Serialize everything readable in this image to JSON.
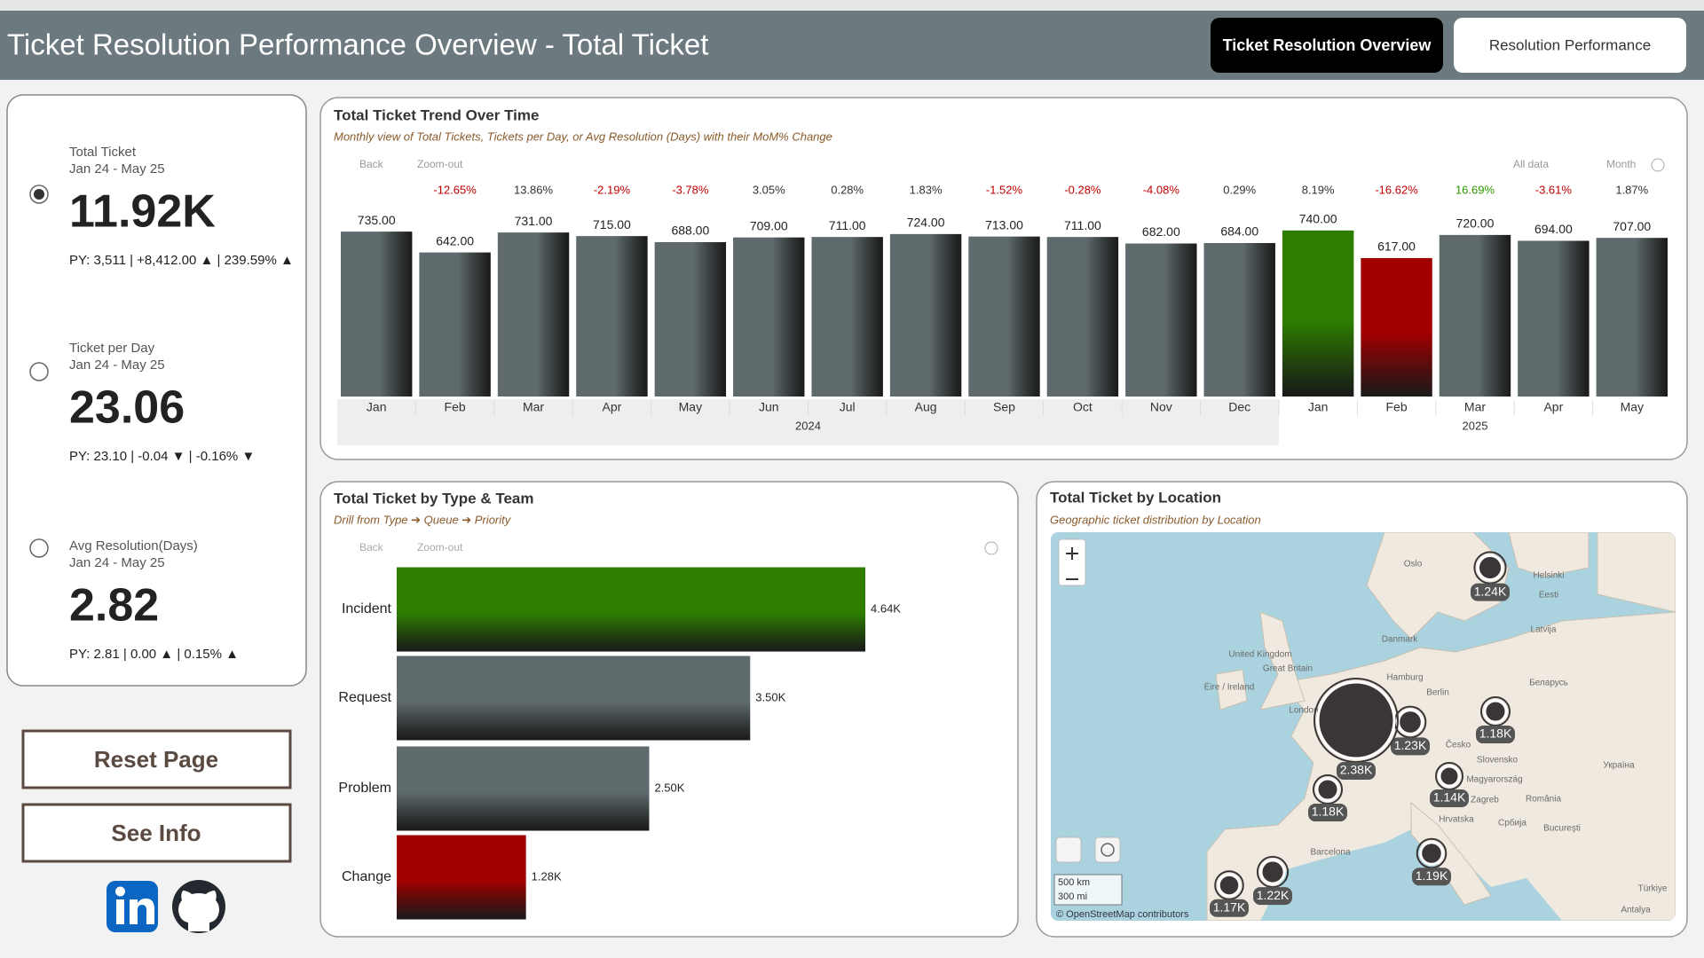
{
  "header": {
    "title": "Ticket Resolution Performance Overview - Total Ticket",
    "tabs": [
      "Ticket Resolution Overview",
      "Resolution Performance"
    ]
  },
  "kpis": [
    {
      "label": "Total Ticket",
      "period": "Jan 24 - May 25",
      "value": "11.92K",
      "comparison": "PY: 3,511 | +8,412.00 ▲ | 239.59% ▲"
    },
    {
      "label": "Ticket per Day",
      "period": "Jan 24 - May 25",
      "value": "23.06",
      "comparison": "PY: 23.10 | -0.04  ▼  | -0.16%  ▼"
    },
    {
      "label": "Avg Resolution(Days)",
      "period": "Jan 24 - May 25",
      "value": "2.82",
      "comparison": "PY: 2.81 | 0.00 ▲ | 0.15% ▲"
    }
  ],
  "buttons": [
    "Reset Page",
    "See Info"
  ],
  "chart_data": [
    {
      "type": "bar",
      "title": "Total Ticket Trend Over Time",
      "subtitle": "Monthly view of Total Tickets, Tickets per Day, or Avg Resolution (Days) with their MoM% Change",
      "toolbar": [
        "Back",
        "Zoom-out",
        "All data",
        "Month"
      ],
      "categories": [
        "Jan",
        "Feb",
        "Mar",
        "Apr",
        "May",
        "Jun",
        "Jul",
        "Aug",
        "Sep",
        "Oct",
        "Nov",
        "Dec",
        "Jan",
        "Feb",
        "Mar",
        "Apr",
        "May"
      ],
      "category_years": [
        "2024",
        "2024",
        "2024",
        "2024",
        "2024",
        "2024",
        "2024",
        "2024",
        "2024",
        "2024",
        "2024",
        "2024",
        "2025",
        "2025",
        "2025",
        "2025",
        "2025"
      ],
      "values": [
        735,
        642,
        731,
        715,
        688,
        709,
        711,
        724,
        713,
        711,
        682,
        684,
        740,
        617,
        720,
        694,
        707
      ],
      "value_labels": [
        "735.00",
        "642.00",
        "731.00",
        "715.00",
        "688.00",
        "709.00",
        "711.00",
        "724.00",
        "713.00",
        "711.00",
        "682.00",
        "684.00",
        "740.00",
        "617.00",
        "720.00",
        "694.00",
        "707.00"
      ],
      "colors": [
        "#5e6a6c",
        "#5e6a6c",
        "#5e6a6c",
        "#5e6a6c",
        "#5e6a6c",
        "#5e6a6c",
        "#5e6a6c",
        "#5e6a6c",
        "#5e6a6c",
        "#5e6a6c",
        "#5e6a6c",
        "#5e6a6c",
        "#2e7d00",
        "#a00000",
        "#5e6a6c",
        "#5e6a6c",
        "#5e6a6c"
      ],
      "mom_change_labels": [
        "-12.65%",
        "13.86%",
        "-2.19%",
        "-3.78%",
        "3.05%",
        "0.28%",
        "1.83%",
        "-1.52%",
        "-0.28%",
        "-4.08%",
        "0.29%",
        "8.19%",
        "-16.62%",
        "16.69%",
        "-3.61%",
        "1.87%"
      ],
      "mom_colors": [
        "#c00000",
        "#333333",
        "#c00000",
        "#c00000",
        "#333333",
        "#333333",
        "#333333",
        "#c00000",
        "#c00000",
        "#c00000",
        "#333333",
        "#333333",
        "#c00000",
        "#2e9900",
        "#c00000",
        "#333333"
      ],
      "ylim": [
        0,
        850
      ]
    },
    {
      "type": "hbar",
      "title": "Total Ticket by Type & Team",
      "subtitle": "Drill from Type ➔ Queue ➔ Priority",
      "toolbar": [
        "Back",
        "Zoom-out"
      ],
      "categories": [
        "Incident",
        "Request",
        "Problem",
        "Change"
      ],
      "values": [
        4640,
        3500,
        2500,
        1280
      ],
      "value_labels": [
        "4.64K",
        "3.50K",
        "2.50K",
        "1.28K"
      ],
      "colors": [
        "#2e7d00",
        "#5e6a6c",
        "#5e6a6c",
        "#a00000"
      ],
      "xlim": [
        0,
        5800
      ]
    }
  ],
  "map": {
    "title": "Total Ticket by Location",
    "subtitle": "Geographic ticket distribution by Location",
    "bubbles": [
      {
        "value": 1240,
        "label": "1.24K"
      },
      {
        "value": 1180,
        "label": "1.18K"
      },
      {
        "value": 1230,
        "label": "1.23K"
      },
      {
        "value": 2380,
        "label": "2.38K"
      },
      {
        "value": 1180,
        "label": "1.18K"
      },
      {
        "value": 1140,
        "label": "1.14K"
      },
      {
        "value": 1190,
        "label": "1.19K"
      },
      {
        "value": 1220,
        "label": "1.22K"
      },
      {
        "value": 1170,
        "label": "1.17K"
      }
    ],
    "place_names": [
      "Oslo",
      "Helsinki",
      "Eesti",
      "Latvija",
      "Danmark",
      "United Kingdom",
      "Great Britain",
      "Éire / Ireland",
      "Hamburg",
      "Berlin",
      "London",
      "Česko",
      "Беларусь",
      "Slovensko",
      "Magyarország",
      "Україна",
      "Zagreb",
      "România",
      "Hrvatska",
      "Србија",
      "Bucureşti",
      "Barcelona",
      "Türkiye",
      "Antalya"
    ],
    "scale": [
      "500 km",
      "300 mi"
    ],
    "attribution": "© OpenStreetMap contributors"
  }
}
